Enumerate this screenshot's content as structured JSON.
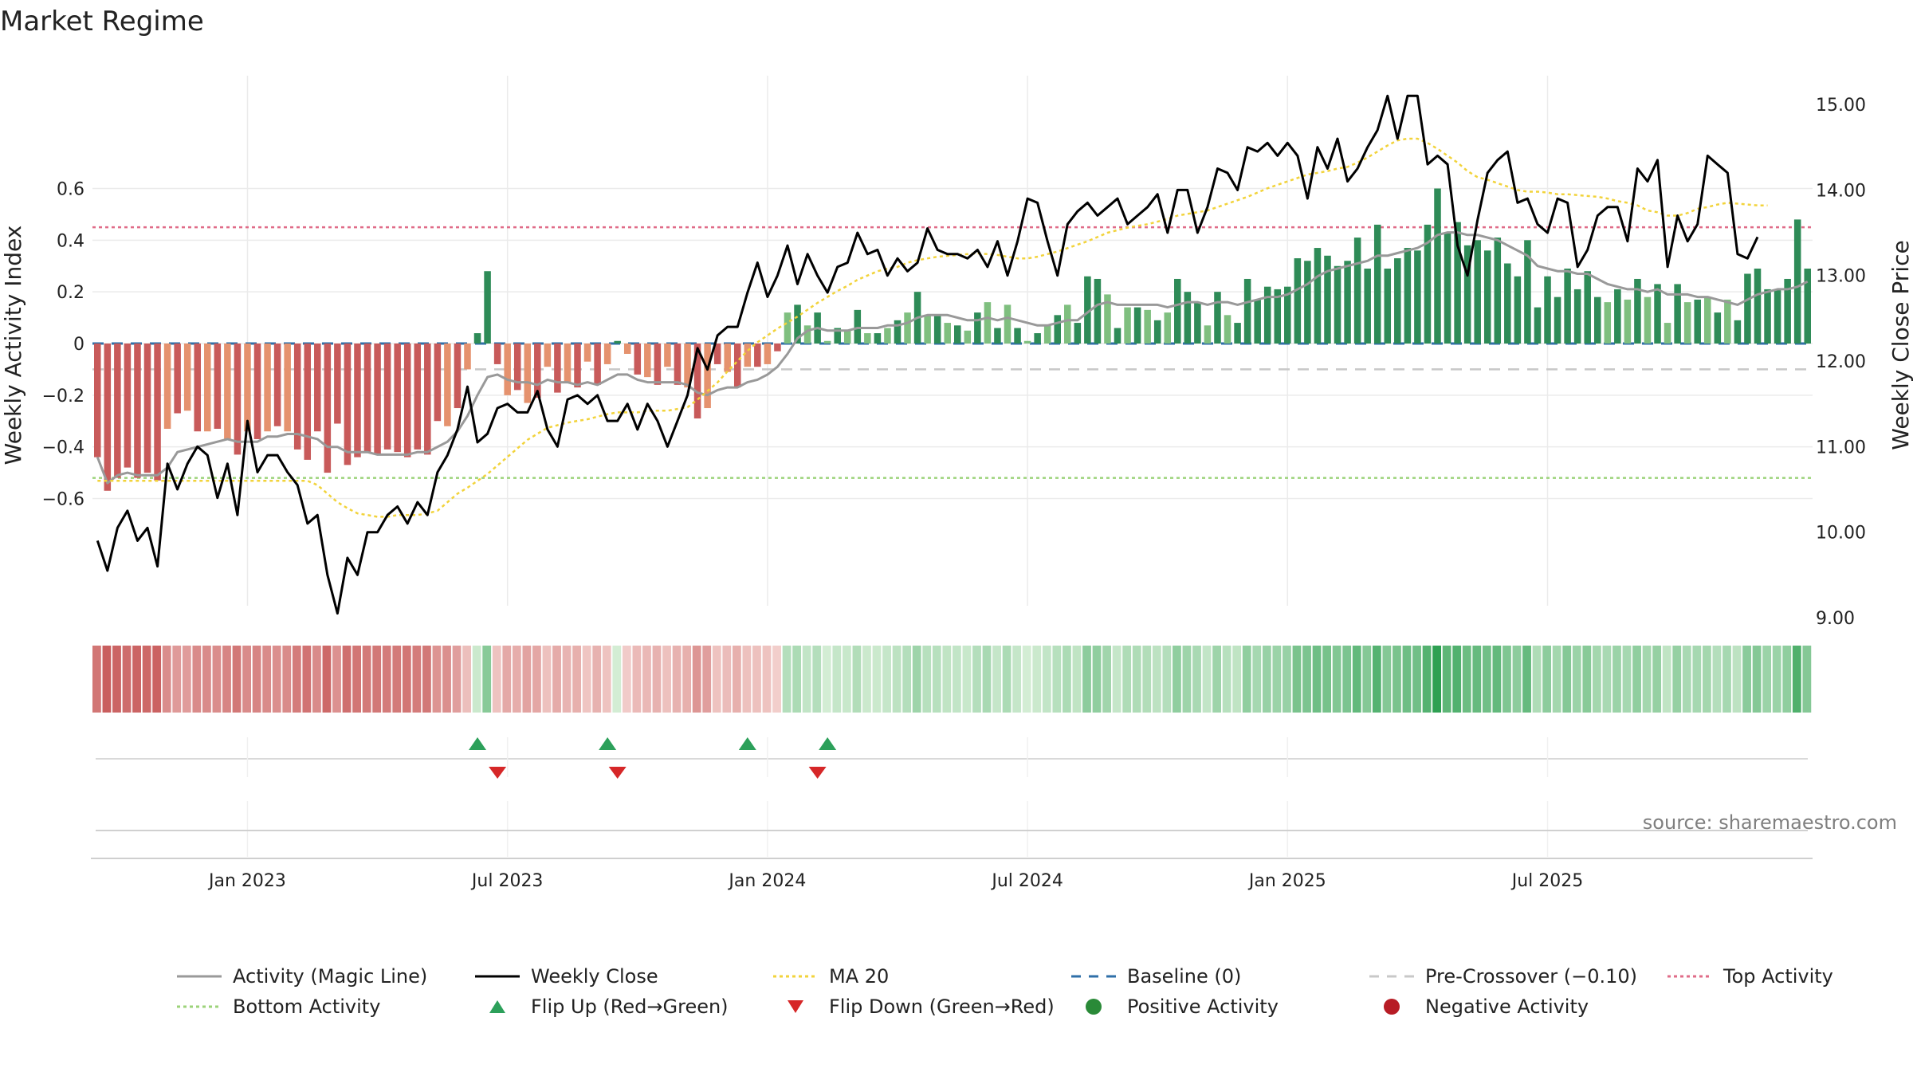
{
  "chart_data": {
    "type": "bar",
    "title": "Market Regime",
    "ylabel_left": "Weekly Activity Index",
    "ylabel_right": "Weekly Close Price",
    "ylim_left": [
      -0.65,
      0.6
    ],
    "ylim_right": [
      9.0,
      15.0
    ],
    "left_ticks": [
      "0.6",
      "0.4",
      "0.2",
      "0",
      "−0.2",
      "−0.4",
      "−0.6"
    ],
    "right_ticks": [
      "15.00",
      "14.00",
      "13.00",
      "12.00",
      "11.00",
      "10.00",
      "9.00"
    ],
    "x_ticks": [
      "Jan 2023",
      "Jul 2023",
      "Jan 2024",
      "Jul 2024",
      "Jan 2025",
      "Jul 2025"
    ],
    "source": "source: sharemaestro.com",
    "reference_lines": {
      "baseline": 0,
      "pre_crossover": -0.1,
      "top_activity": 0.45,
      "bottom_activity": -0.52
    },
    "activity": [
      -0.44,
      -0.57,
      -0.52,
      -0.48,
      -0.52,
      -0.5,
      -0.53,
      -0.33,
      -0.27,
      -0.26,
      -0.34,
      -0.34,
      -0.33,
      -0.37,
      -0.43,
      -0.34,
      -0.37,
      -0.34,
      -0.32,
      -0.34,
      -0.41,
      -0.45,
      -0.34,
      -0.5,
      -0.31,
      -0.47,
      -0.44,
      -0.42,
      -0.43,
      -0.41,
      -0.42,
      -0.44,
      -0.41,
      -0.43,
      -0.3,
      -0.32,
      -0.25,
      -0.1,
      0.04,
      0.28,
      -0.08,
      -0.2,
      -0.18,
      -0.23,
      -0.21,
      -0.09,
      -0.19,
      -0.15,
      -0.17,
      -0.07,
      -0.16,
      -0.08,
      0.01,
      -0.04,
      -0.12,
      -0.13,
      -0.16,
      -0.09,
      -0.16,
      -0.17,
      -0.29,
      -0.25,
      -0.08,
      -0.11,
      -0.17,
      -0.09,
      -0.09,
      -0.08,
      -0.03,
      0.12,
      0.15,
      0.07,
      0.12,
      0.01,
      0.06,
      0.05,
      0.13,
      0.04,
      0.04,
      0.06,
      0.09,
      0.12,
      0.2,
      0.11,
      0.11,
      0.08,
      0.07,
      0.05,
      0.12,
      0.16,
      0.06,
      0.15,
      0.06,
      0.01,
      0.04,
      0.07,
      0.11,
      0.15,
      0.08,
      0.26,
      0.25,
      0.19,
      0.06,
      0.14,
      0.14,
      0.13,
      0.09,
      0.12,
      0.25,
      0.2,
      0.16,
      0.07,
      0.2,
      0.11,
      0.08,
      0.25,
      0.17,
      0.22,
      0.21,
      0.22,
      0.33,
      0.32,
      0.37,
      0.34,
      0.3,
      0.32,
      0.41,
      0.29,
      0.46,
      0.29,
      0.33,
      0.37,
      0.36,
      0.46,
      0.6,
      0.43,
      0.47,
      0.38,
      0.4,
      0.36,
      0.41,
      0.31,
      0.26,
      0.4,
      0.14,
      0.26,
      0.18,
      0.29,
      0.21,
      0.28,
      0.18,
      0.16,
      0.21,
      0.17,
      0.25,
      0.18,
      0.23,
      0.08,
      0.23,
      0.16,
      0.17,
      0.18,
      0.12,
      0.17,
      0.09,
      0.27,
      0.29,
      0.21,
      0.21,
      0.25,
      0.48,
      0.29
    ],
    "magic_line": [
      -0.44,
      -0.54,
      -0.51,
      -0.5,
      -0.51,
      -0.51,
      -0.51,
      -0.48,
      -0.42,
      -0.41,
      -0.4,
      -0.39,
      -0.38,
      -0.37,
      -0.38,
      -0.38,
      -0.38,
      -0.36,
      -0.36,
      -0.35,
      -0.35,
      -0.36,
      -0.37,
      -0.4,
      -0.4,
      -0.42,
      -0.42,
      -0.42,
      -0.43,
      -0.43,
      -0.43,
      -0.43,
      -0.42,
      -0.42,
      -0.4,
      -0.38,
      -0.34,
      -0.28,
      -0.2,
      -0.13,
      -0.12,
      -0.14,
      -0.15,
      -0.15,
      -0.16,
      -0.14,
      -0.15,
      -0.15,
      -0.16,
      -0.15,
      -0.16,
      -0.14,
      -0.12,
      -0.12,
      -0.14,
      -0.15,
      -0.15,
      -0.15,
      -0.15,
      -0.16,
      -0.19,
      -0.2,
      -0.18,
      -0.17,
      -0.17,
      -0.15,
      -0.14,
      -0.12,
      -0.09,
      -0.04,
      0.02,
      0.05,
      0.06,
      0.05,
      0.05,
      0.05,
      0.06,
      0.06,
      0.06,
      0.07,
      0.07,
      0.08,
      0.1,
      0.11,
      0.11,
      0.11,
      0.1,
      0.09,
      0.09,
      0.1,
      0.09,
      0.1,
      0.09,
      0.08,
      0.07,
      0.07,
      0.08,
      0.09,
      0.09,
      0.12,
      0.15,
      0.16,
      0.15,
      0.15,
      0.15,
      0.15,
      0.15,
      0.14,
      0.15,
      0.16,
      0.16,
      0.15,
      0.16,
      0.16,
      0.15,
      0.16,
      0.17,
      0.18,
      0.18,
      0.19,
      0.21,
      0.23,
      0.26,
      0.28,
      0.29,
      0.3,
      0.31,
      0.32,
      0.34,
      0.34,
      0.35,
      0.36,
      0.37,
      0.39,
      0.42,
      0.43,
      0.43,
      0.42,
      0.42,
      0.41,
      0.4,
      0.38,
      0.36,
      0.34,
      0.3,
      0.29,
      0.28,
      0.28,
      0.27,
      0.27,
      0.25,
      0.23,
      0.22,
      0.21,
      0.21,
      0.2,
      0.21,
      0.19,
      0.19,
      0.19,
      0.18,
      0.18,
      0.17,
      0.16,
      0.15,
      0.17,
      0.19,
      0.2,
      0.21,
      0.21,
      0.22,
      0.24
    ],
    "weekly_close": [
      9.9,
      9.55,
      10.05,
      10.25,
      9.9,
      10.05,
      9.6,
      10.8,
      10.5,
      10.8,
      11.0,
      10.9,
      10.4,
      10.8,
      10.2,
      11.3,
      10.7,
      10.9,
      10.9,
      10.7,
      10.55,
      10.1,
      10.2,
      9.5,
      9.05,
      9.7,
      9.5,
      10.0,
      10.0,
      10.2,
      10.3,
      10.1,
      10.35,
      10.2,
      10.7,
      10.9,
      11.2,
      11.7,
      11.05,
      11.15,
      11.45,
      11.5,
      11.4,
      11.4,
      11.65,
      11.2,
      11.0,
      11.55,
      11.6,
      11.5,
      11.6,
      11.3,
      11.3,
      11.5,
      11.2,
      11.5,
      11.3,
      11.0,
      11.3,
      11.6,
      12.15,
      11.9,
      12.3,
      12.4,
      12.4,
      12.8,
      13.15,
      12.75,
      13.0,
      13.35,
      12.9,
      13.25,
      13.0,
      12.8,
      13.1,
      13.15,
      13.5,
      13.25,
      13.3,
      13.0,
      13.2,
      13.05,
      13.15,
      13.55,
      13.3,
      13.25,
      13.25,
      13.2,
      13.3,
      13.1,
      13.4,
      13.0,
      13.4,
      13.9,
      13.85,
      13.4,
      13.0,
      13.6,
      13.75,
      13.85,
      13.7,
      13.8,
      13.9,
      13.6,
      13.7,
      13.8,
      13.95,
      13.5,
      14.0,
      14.0,
      13.5,
      13.8,
      14.25,
      14.2,
      14.0,
      14.5,
      14.45,
      14.55,
      14.4,
      14.55,
      14.4,
      13.9,
      14.5,
      14.25,
      14.6,
      14.1,
      14.25,
      14.5,
      14.7,
      15.1,
      14.6,
      15.1,
      15.1,
      14.3,
      14.4,
      14.3,
      13.35,
      13.0,
      13.65,
      14.2,
      14.35,
      14.45,
      13.85,
      13.9,
      13.6,
      13.5,
      13.9,
      13.85,
      13.1,
      13.3,
      13.7,
      13.8,
      13.8,
      13.4,
      14.25,
      14.1,
      14.35,
      13.1,
      13.7,
      13.4,
      13.6,
      14.4,
      14.3,
      14.2,
      13.25,
      13.2,
      13.45
    ],
    "ma20": [
      10.6,
      10.6,
      10.6,
      10.6,
      10.6,
      10.6,
      10.6,
      10.6,
      10.6,
      10.6,
      10.6,
      10.6,
      10.6,
      10.6,
      10.6,
      10.6,
      10.6,
      10.6,
      10.6,
      10.6,
      10.6,
      10.6,
      10.55,
      10.45,
      10.35,
      10.28,
      10.22,
      10.2,
      10.18,
      10.18,
      10.2,
      10.2,
      10.2,
      10.22,
      10.25,
      10.35,
      10.45,
      10.52,
      10.6,
      10.68,
      10.78,
      10.88,
      10.98,
      11.08,
      11.15,
      11.22,
      11.25,
      11.28,
      11.3,
      11.32,
      11.35,
      11.38,
      11.4,
      11.4,
      11.4,
      11.42,
      11.42,
      11.42,
      11.44,
      11.46,
      11.55,
      11.65,
      11.75,
      11.88,
      12.0,
      12.12,
      12.22,
      12.3,
      12.38,
      12.45,
      12.52,
      12.6,
      12.68,
      12.75,
      12.82,
      12.88,
      12.95,
      13.0,
      13.05,
      13.08,
      13.1,
      13.15,
      13.18,
      13.2,
      13.22,
      13.23,
      13.24,
      13.25,
      13.26,
      13.25,
      13.24,
      13.22,
      13.2,
      13.2,
      13.22,
      13.25,
      13.28,
      13.32,
      13.36,
      13.4,
      13.45,
      13.5,
      13.53,
      13.56,
      13.58,
      13.6,
      13.63,
      13.66,
      13.7,
      13.72,
      13.74,
      13.76,
      13.8,
      13.84,
      13.88,
      13.92,
      13.97,
      14.02,
      14.06,
      14.1,
      14.14,
      14.18,
      14.2,
      14.22,
      14.25,
      14.27,
      14.32,
      14.38,
      14.45,
      14.52,
      14.58,
      14.6,
      14.6,
      14.55,
      14.48,
      14.4,
      14.32,
      14.22,
      14.15,
      14.12,
      14.08,
      14.04,
      14.0,
      13.98,
      13.98,
      13.97,
      13.95,
      13.95,
      13.94,
      13.93,
      13.92,
      13.9,
      13.87,
      13.85,
      13.82,
      13.76,
      13.74,
      13.7,
      13.7,
      13.73,
      13.78,
      13.8,
      13.83,
      13.85,
      13.84,
      13.83,
      13.82,
      13.82
    ],
    "flip_up_idx": [
      38,
      51,
      65,
      73
    ],
    "flip_down_idx": [
      40,
      52,
      72
    ],
    "x_tick_idx": [
      15,
      41,
      67,
      93,
      119,
      145
    ],
    "legend": [
      {
        "label": "Activity (Magic Line)",
        "kind": "line",
        "color": "#999999",
        "dash": ""
      },
      {
        "label": "Weekly Close",
        "kind": "line",
        "color": "#000000",
        "dash": ""
      },
      {
        "label": "MA 20",
        "kind": "line",
        "color": "#f2d33b",
        "dash": "4,4"
      },
      {
        "label": "Baseline (0)",
        "kind": "line",
        "color": "#2f6fa8",
        "dash": "12,10"
      },
      {
        "label": "Pre-Crossover (−0.10)",
        "kind": "line",
        "color": "#c8c8c8",
        "dash": "12,10"
      },
      {
        "label": "Top Activity",
        "kind": "line",
        "color": "#e06c88",
        "dash": "4,4"
      },
      {
        "label": "Bottom Activity",
        "kind": "line",
        "color": "#9cd37a",
        "dash": "4,4"
      },
      {
        "label": "Flip Up (Red→Green)",
        "kind": "tri-up",
        "color": "#2ca05a",
        "dash": ""
      },
      {
        "label": "Flip Down (Green→Red)",
        "kind": "tri-down",
        "color": "#d62728",
        "dash": ""
      },
      {
        "label": "Positive Activity",
        "kind": "dot",
        "color": "#2a8a38",
        "dash": ""
      },
      {
        "label": "Negative Activity",
        "kind": "dot",
        "color": "#b71c25",
        "dash": ""
      }
    ],
    "colors": {
      "pos_dark": "#2e8b57",
      "pos_light": "#7fbf7f",
      "neg_dark": "#c85a5a",
      "neg_light": "#e5926e",
      "grid": "#ebebeb"
    }
  }
}
